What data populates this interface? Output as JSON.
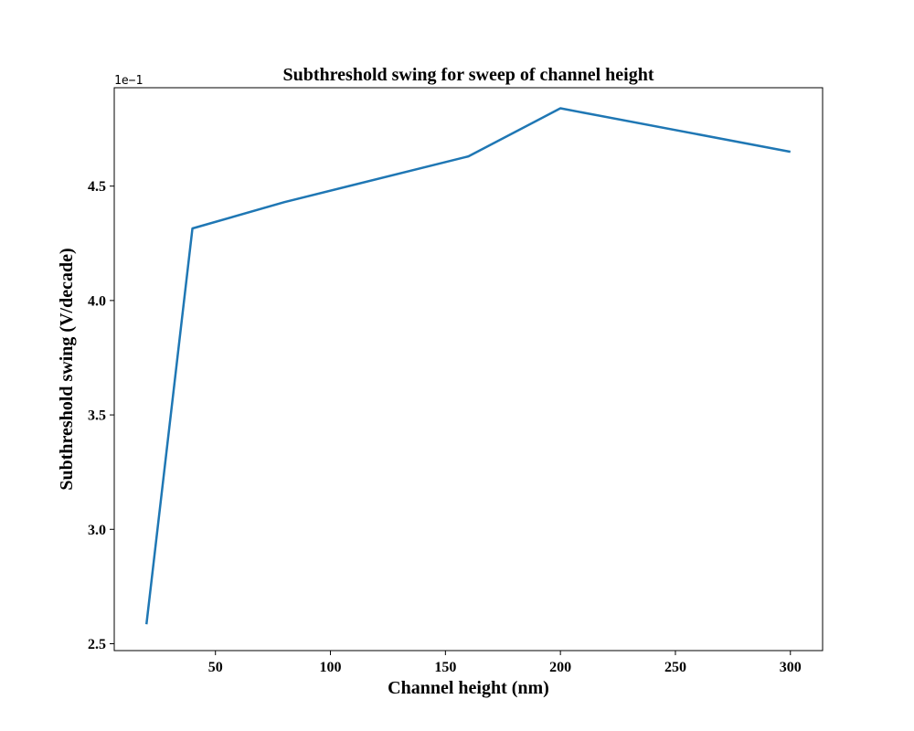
{
  "chart_data": {
    "type": "line",
    "title": "Subthreshold swing for sweep of channel height",
    "xlabel": "Channel height (nm)",
    "ylabel": "Subthreshold swing (V/decade)",
    "y_offset_label": "1e−1",
    "xlim": [
      6,
      314
    ],
    "ylim": [
      2.47,
      4.93
    ],
    "x_ticks": [
      50,
      100,
      150,
      200,
      250,
      300
    ],
    "x_tick_labels": [
      "50",
      "100",
      "150",
      "200",
      "250",
      "300"
    ],
    "y_ticks": [
      2.5,
      3.0,
      3.5,
      4.0,
      4.5
    ],
    "y_tick_labels": [
      "2.5",
      "3.0",
      "3.5",
      "4.0",
      "4.5"
    ],
    "grid": false,
    "series": [
      {
        "color": "#1f77b4",
        "x": [
          20,
          40,
          80,
          160,
          200,
          300
        ],
        "y": [
          2.585,
          4.315,
          4.43,
          4.63,
          4.84,
          4.65
        ]
      }
    ]
  }
}
